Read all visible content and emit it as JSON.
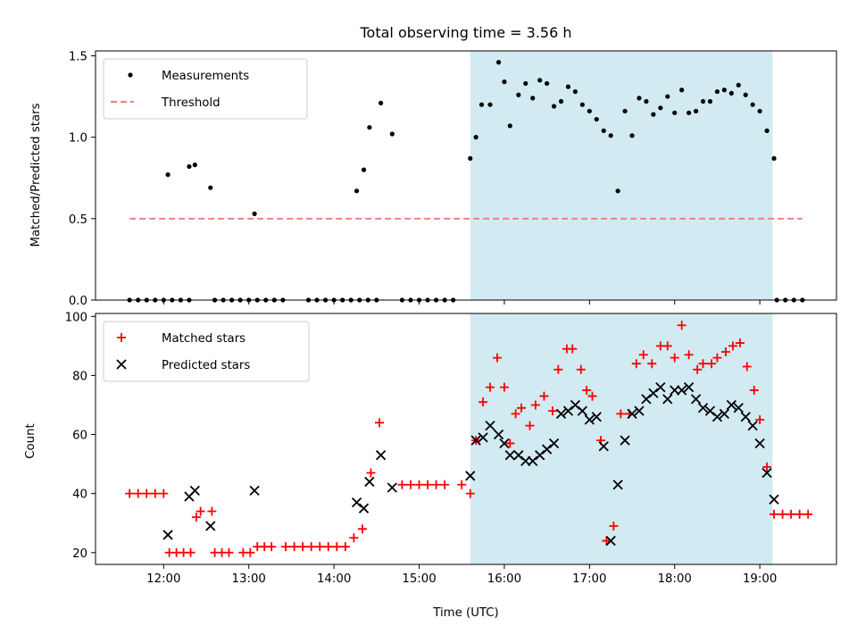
{
  "chart_data": [
    {
      "type": "scatter",
      "title": "Total observing time = 3.56 h",
      "ylabel": "Matched/Predicted stars",
      "xlim": [
        "11:12",
        "19:54"
      ],
      "ylim": [
        0,
        1.53
      ],
      "yticks": [
        0.0,
        0.5,
        1.0,
        1.5
      ],
      "ytick_labels": [
        "0.0",
        "0.5",
        "1.0",
        "1.5"
      ],
      "highlight_span": {
        "start": "15:36",
        "end": "19:09",
        "color": "#add8e6"
      },
      "legend": {
        "position": "upper-left",
        "entries": [
          "Measurements",
          "Threshold"
        ]
      },
      "series": [
        {
          "name": "Measurements",
          "color": "#000000",
          "marker": "dot",
          "points": [
            [
              "11:36",
              0
            ],
            [
              "11:42",
              0
            ],
            [
              "11:48",
              0
            ],
            [
              "11:54",
              0
            ],
            [
              "12:00",
              0
            ],
            [
              "12:06",
              0
            ],
            [
              "12:12",
              0
            ],
            [
              "12:18",
              0
            ],
            [
              "12:36",
              0
            ],
            [
              "12:42",
              0
            ],
            [
              "12:48",
              0
            ],
            [
              "12:54",
              0
            ],
            [
              "13:00",
              0
            ],
            [
              "13:06",
              0
            ],
            [
              "13:12",
              0
            ],
            [
              "13:18",
              0
            ],
            [
              "13:24",
              0
            ],
            [
              "13:42",
              0
            ],
            [
              "13:48",
              0
            ],
            [
              "13:54",
              0
            ],
            [
              "14:00",
              0
            ],
            [
              "14:06",
              0
            ],
            [
              "14:12",
              0
            ],
            [
              "14:18",
              0
            ],
            [
              "14:24",
              0
            ],
            [
              "14:30",
              0
            ],
            [
              "14:48",
              0
            ],
            [
              "14:54",
              0
            ],
            [
              "15:00",
              0
            ],
            [
              "15:06",
              0
            ],
            [
              "15:12",
              0
            ],
            [
              "15:18",
              0
            ],
            [
              "15:24",
              0
            ],
            [
              "19:12",
              0
            ],
            [
              "19:18",
              0
            ],
            [
              "19:24",
              0
            ],
            [
              "19:30",
              0
            ],
            [
              "12:03",
              0.77
            ],
            [
              "12:18",
              0.82
            ],
            [
              "12:22",
              0.83
            ],
            [
              "12:33",
              0.69
            ],
            [
              "13:04",
              0.53
            ],
            [
              "14:16",
              0.67
            ],
            [
              "14:21",
              0.8
            ],
            [
              "14:25",
              1.06
            ],
            [
              "14:33",
              1.21
            ],
            [
              "14:41",
              1.02
            ],
            [
              "15:36",
              0.87
            ],
            [
              "15:40",
              1.0
            ],
            [
              "15:44",
              1.2
            ],
            [
              "15:50",
              1.2
            ],
            [
              "15:56",
              1.46
            ],
            [
              "16:00",
              1.34
            ],
            [
              "16:04",
              1.07
            ],
            [
              "16:10",
              1.26
            ],
            [
              "16:15",
              1.33
            ],
            [
              "16:20",
              1.24
            ],
            [
              "16:25",
              1.35
            ],
            [
              "16:30",
              1.33
            ],
            [
              "16:35",
              1.19
            ],
            [
              "16:40",
              1.22
            ],
            [
              "16:45",
              1.31
            ],
            [
              "16:50",
              1.28
            ],
            [
              "16:55",
              1.2
            ],
            [
              "17:00",
              1.16
            ],
            [
              "17:05",
              1.11
            ],
            [
              "17:10",
              1.04
            ],
            [
              "17:15",
              1.01
            ],
            [
              "17:20",
              0.67
            ],
            [
              "17:25",
              1.16
            ],
            [
              "17:30",
              1.01
            ],
            [
              "17:35",
              1.24
            ],
            [
              "17:40",
              1.22
            ],
            [
              "17:45",
              1.14
            ],
            [
              "17:50",
              1.18
            ],
            [
              "17:55",
              1.25
            ],
            [
              "18:00",
              1.15
            ],
            [
              "18:05",
              1.29
            ],
            [
              "18:10",
              1.15
            ],
            [
              "18:15",
              1.16
            ],
            [
              "18:20",
              1.22
            ],
            [
              "18:25",
              1.22
            ],
            [
              "18:30",
              1.28
            ],
            [
              "18:35",
              1.29
            ],
            [
              "18:40",
              1.27
            ],
            [
              "18:45",
              1.32
            ],
            [
              "18:50",
              1.26
            ],
            [
              "18:55",
              1.2
            ],
            [
              "19:00",
              1.16
            ],
            [
              "19:05",
              1.04
            ],
            [
              "19:10",
              0.87
            ]
          ]
        },
        {
          "name": "Threshold",
          "color": "#f08080",
          "style": "dashed",
          "points": [
            [
              "11:36",
              0.5
            ],
            [
              "19:30",
              0.5
            ]
          ]
        }
      ]
    },
    {
      "type": "scatter",
      "xlabel": "Time (UTC)",
      "ylabel": "Count",
      "xlim": [
        "11:12",
        "19:54"
      ],
      "ylim": [
        16,
        101
      ],
      "yticks": [
        20,
        40,
        60,
        80,
        100
      ],
      "xticks": [
        "12:00",
        "13:00",
        "14:00",
        "15:00",
        "16:00",
        "17:00",
        "18:00",
        "19:00"
      ],
      "highlight_span": {
        "start": "15:36",
        "end": "19:09",
        "color": "#add8e6"
      },
      "legend": {
        "position": "upper-left",
        "entries": [
          "Matched stars",
          "Predicted stars"
        ]
      },
      "series": [
        {
          "name": "Matched stars",
          "color": "#ff0000",
          "marker": "plus",
          "points": [
            [
              "11:36",
              40
            ],
            [
              "11:42",
              40
            ],
            [
              "11:48",
              40
            ],
            [
              "11:54",
              40
            ],
            [
              "12:00",
              40
            ],
            [
              "12:04",
              20
            ],
            [
              "12:09",
              20
            ],
            [
              "12:14",
              20
            ],
            [
              "12:19",
              20
            ],
            [
              "12:23",
              32
            ],
            [
              "12:26",
              34
            ],
            [
              "12:34",
              34
            ],
            [
              "12:36",
              20
            ],
            [
              "12:41",
              20
            ],
            [
              "12:46",
              20
            ],
            [
              "12:56",
              20
            ],
            [
              "13:01",
              20
            ],
            [
              "13:06",
              22
            ],
            [
              "13:11",
              22
            ],
            [
              "13:16",
              22
            ],
            [
              "13:26",
              22
            ],
            [
              "13:32",
              22
            ],
            [
              "13:38",
              22
            ],
            [
              "13:44",
              22
            ],
            [
              "13:50",
              22
            ],
            [
              "13:56",
              22
            ],
            [
              "14:02",
              22
            ],
            [
              "14:08",
              22
            ],
            [
              "14:14",
              25
            ],
            [
              "14:20",
              28
            ],
            [
              "14:26",
              47
            ],
            [
              "14:32",
              64
            ],
            [
              "14:48",
              43
            ],
            [
              "14:54",
              43
            ],
            [
              "15:00",
              43
            ],
            [
              "15:06",
              43
            ],
            [
              "15:12",
              43
            ],
            [
              "15:18",
              43
            ],
            [
              "15:30",
              43
            ],
            [
              "15:36",
              40
            ],
            [
              "15:40",
              58
            ],
            [
              "15:45",
              71
            ],
            [
              "15:50",
              76
            ],
            [
              "15:55",
              86
            ],
            [
              "16:00",
              76
            ],
            [
              "16:04",
              57
            ],
            [
              "16:08",
              67
            ],
            [
              "16:12",
              69
            ],
            [
              "16:18",
              63
            ],
            [
              "16:22",
              70
            ],
            [
              "16:28",
              73
            ],
            [
              "16:34",
              68
            ],
            [
              "16:38",
              82
            ],
            [
              "16:44",
              89
            ],
            [
              "16:48",
              89
            ],
            [
              "16:54",
              82
            ],
            [
              "16:58",
              75
            ],
            [
              "17:02",
              73
            ],
            [
              "17:08",
              58
            ],
            [
              "17:12",
              24
            ],
            [
              "17:17",
              29
            ],
            [
              "17:22",
              67
            ],
            [
              "17:28",
              67
            ],
            [
              "17:33",
              84
            ],
            [
              "17:38",
              87
            ],
            [
              "17:44",
              84
            ],
            [
              "17:50",
              90
            ],
            [
              "17:55",
              90
            ],
            [
              "18:00",
              86
            ],
            [
              "18:05",
              97
            ],
            [
              "18:10",
              87
            ],
            [
              "18:16",
              82
            ],
            [
              "18:20",
              84
            ],
            [
              "18:26",
              84
            ],
            [
              "18:30",
              86
            ],
            [
              "18:36",
              88
            ],
            [
              "18:41",
              90
            ],
            [
              "18:46",
              91
            ],
            [
              "18:51",
              83
            ],
            [
              "18:56",
              75
            ],
            [
              "19:00",
              65
            ],
            [
              "19:05",
              49
            ],
            [
              "19:10",
              33
            ],
            [
              "19:16",
              33
            ],
            [
              "19:22",
              33
            ],
            [
              "19:28",
              33
            ],
            [
              "19:34",
              33
            ]
          ]
        },
        {
          "name": "Predicted stars",
          "color": "#000000",
          "marker": "x",
          "points": [
            [
              "12:03",
              26
            ],
            [
              "12:18",
              39
            ],
            [
              "12:22",
              41
            ],
            [
              "12:33",
              29
            ],
            [
              "13:04",
              41
            ],
            [
              "14:16",
              37
            ],
            [
              "14:21",
              35
            ],
            [
              "14:25",
              44
            ],
            [
              "14:33",
              53
            ],
            [
              "14:41",
              42
            ],
            [
              "15:36",
              46
            ],
            [
              "15:40",
              58
            ],
            [
              "15:45",
              59
            ],
            [
              "15:50",
              63
            ],
            [
              "15:56",
              60
            ],
            [
              "16:00",
              57
            ],
            [
              "16:04",
              53
            ],
            [
              "16:10",
              53
            ],
            [
              "16:15",
              51
            ],
            [
              "16:20",
              51
            ],
            [
              "16:25",
              53
            ],
            [
              "16:30",
              55
            ],
            [
              "16:35",
              57
            ],
            [
              "16:40",
              67
            ],
            [
              "16:45",
              68
            ],
            [
              "16:50",
              70
            ],
            [
              "16:55",
              68
            ],
            [
              "17:00",
              65
            ],
            [
              "17:05",
              66
            ],
            [
              "17:10",
              56
            ],
            [
              "17:15",
              24
            ],
            [
              "17:20",
              43
            ],
            [
              "17:25",
              58
            ],
            [
              "17:30",
              67
            ],
            [
              "17:35",
              68
            ],
            [
              "17:40",
              72
            ],
            [
              "17:45",
              74
            ],
            [
              "17:50",
              76
            ],
            [
              "17:55",
              72
            ],
            [
              "18:00",
              75
            ],
            [
              "18:05",
              75
            ],
            [
              "18:10",
              76
            ],
            [
              "18:15",
              72
            ],
            [
              "18:20",
              69
            ],
            [
              "18:25",
              68
            ],
            [
              "18:30",
              66
            ],
            [
              "18:35",
              67
            ],
            [
              "18:40",
              70
            ],
            [
              "18:45",
              69
            ],
            [
              "18:50",
              66
            ],
            [
              "18:55",
              63
            ],
            [
              "19:00",
              57
            ],
            [
              "19:05",
              47
            ],
            [
              "19:10",
              38
            ]
          ]
        }
      ]
    }
  ]
}
